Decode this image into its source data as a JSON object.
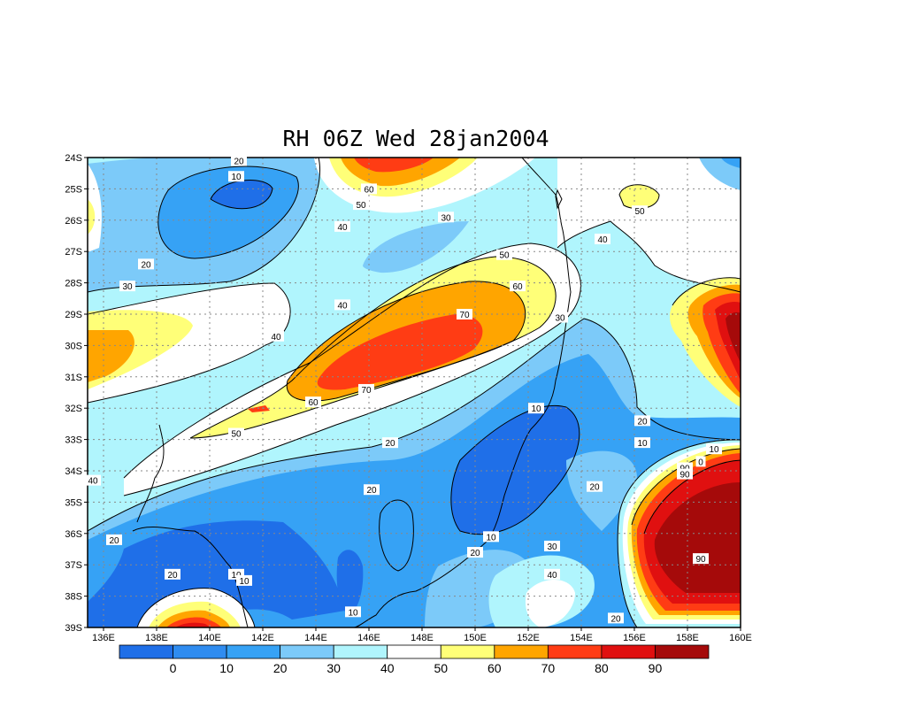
{
  "map": {
    "title": "RH 06Z Wed 28jan2004",
    "lon_labels": [
      "136E",
      "138E",
      "140E",
      "142E",
      "144E",
      "146E",
      "148E",
      "150E",
      "152E",
      "154E",
      "156E",
      "158E",
      "160E"
    ],
    "lat_labels": [
      "24S",
      "25S",
      "26S",
      "27S",
      "28S",
      "29S",
      "30S",
      "31S",
      "32S",
      "33S",
      "34S",
      "35S",
      "36S",
      "37S",
      "38S",
      "39S"
    ],
    "contour_labels": [
      {
        "text": "20",
        "lon": 141.1,
        "lat": -24.1
      },
      {
        "text": "10",
        "lon": 141.0,
        "lat": -24.6
      },
      {
        "text": "60",
        "lon": 146.0,
        "lat": -25.0
      },
      {
        "text": "50",
        "lon": 145.7,
        "lat": -25.5
      },
      {
        "text": "40",
        "lon": 145.0,
        "lat": -26.2
      },
      {
        "text": "30",
        "lon": 148.9,
        "lat": -25.9
      },
      {
        "text": "50",
        "lon": 156.2,
        "lat": -25.7
      },
      {
        "text": "40",
        "lon": 154.8,
        "lat": -26.6
      },
      {
        "text": "20",
        "lon": 137.6,
        "lat": -27.4
      },
      {
        "text": "50",
        "lon": 151.1,
        "lat": -27.1
      },
      {
        "text": "30",
        "lon": 136.9,
        "lat": -28.1
      },
      {
        "text": "60",
        "lon": 151.6,
        "lat": -28.1
      },
      {
        "text": "40",
        "lon": 145.0,
        "lat": -28.7
      },
      {
        "text": "70",
        "lon": 149.6,
        "lat": -29.0
      },
      {
        "text": "30",
        "lon": 153.2,
        "lat": -29.1
      },
      {
        "text": "40",
        "lon": 142.5,
        "lat": -29.7
      },
      {
        "text": "70",
        "lon": 145.9,
        "lat": -31.4
      },
      {
        "text": "60",
        "lon": 143.9,
        "lat": -31.8
      },
      {
        "text": "10",
        "lon": 152.3,
        "lat": -32.0
      },
      {
        "text": "20",
        "lon": 156.3,
        "lat": -32.4
      },
      {
        "text": "50",
        "lon": 141.0,
        "lat": -32.8
      },
      {
        "text": "10",
        "lon": 156.3,
        "lat": -33.1
      },
      {
        "text": "20",
        "lon": 146.8,
        "lat": -33.1
      },
      {
        "text": "10",
        "lon": 159.0,
        "lat": -33.3
      },
      {
        "text": "0",
        "lon": 158.5,
        "lat": -33.7
      },
      {
        "text": "90",
        "lon": 157.9,
        "lat": -33.9
      },
      {
        "text": "90",
        "lon": 157.9,
        "lat": -34.1
      },
      {
        "text": "40",
        "lon": 135.6,
        "lat": -34.3
      },
      {
        "text": "20",
        "lon": 154.5,
        "lat": -34.5
      },
      {
        "text": "20",
        "lon": 146.1,
        "lat": -34.6
      },
      {
        "text": "10",
        "lon": 150.6,
        "lat": -36.1
      },
      {
        "text": "20",
        "lon": 136.4,
        "lat": -36.2
      },
      {
        "text": "30",
        "lon": 152.9,
        "lat": -36.4
      },
      {
        "text": "20",
        "lon": 150.0,
        "lat": -36.6
      },
      {
        "text": "90",
        "lon": 158.5,
        "lat": -36.8
      },
      {
        "text": "20",
        "lon": 138.6,
        "lat": -37.3
      },
      {
        "text": "10",
        "lon": 141.0,
        "lat": -37.3
      },
      {
        "text": "10",
        "lon": 141.3,
        "lat": -37.5
      },
      {
        "text": "40",
        "lon": 152.9,
        "lat": -37.3
      },
      {
        "text": "10",
        "lon": 145.4,
        "lat": -38.5
      },
      {
        "text": "20",
        "lon": 155.3,
        "lat": -38.7
      }
    ]
  },
  "colorbar": {
    "labels": [
      "0",
      "10",
      "20",
      "30",
      "40",
      "50",
      "60",
      "70",
      "80",
      "90"
    ],
    "colors": [
      "#1f6fe8",
      "#2f8cf0",
      "#36a2f5",
      "#7ccaf9",
      "#b0f5fd",
      "#ffffff",
      "#ffff78",
      "#ffa500",
      "#ff3c14",
      "#e01010",
      "#a50a0a"
    ]
  },
  "fill_colors": {
    "l10": "#1f6fe8",
    "l20": "#36a2f5",
    "l30": "#7ccaf9",
    "l40": "#b0f5fd",
    "l50": "#ffffff",
    "l60": "#ffff78",
    "l70": "#ffa500",
    "l80": "#ff3c14",
    "l90": "#e01010",
    "l100": "#a50a0a"
  }
}
